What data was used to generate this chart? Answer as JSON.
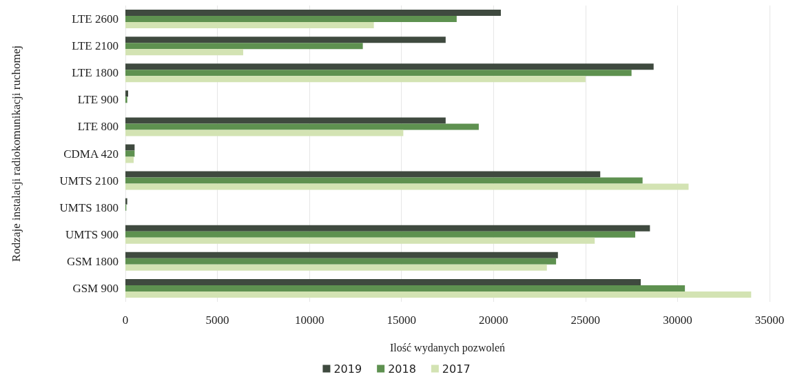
{
  "chart_data": {
    "type": "bar",
    "orientation": "horizontal",
    "xlabel": "Ilość wydanych pozwoleń",
    "ylabel": "Rodzaje instalacji radiokomunikacji ruchomej",
    "categories": [
      "LTE 2600",
      "LTE 2100",
      "LTE 1800",
      "LTE 900",
      "LTE 800",
      "CDMA 420",
      "UMTS 2100",
      "UMTS 1800",
      "UMTS 900",
      "GSM 1800",
      "GSM 900"
    ],
    "series": [
      {
        "name": "2019",
        "color": "#3f4a3f",
        "values": [
          20400,
          17400,
          28700,
          150,
          17400,
          500,
          25800,
          100,
          28500,
          23500,
          28000
        ]
      },
      {
        "name": "2018",
        "color": "#5e9150",
        "values": [
          18000,
          12900,
          27500,
          100,
          19200,
          500,
          28100,
          50,
          27700,
          23400,
          30400
        ]
      },
      {
        "name": "2017",
        "color": "#d3e3b3",
        "values": [
          13500,
          6400,
          25000,
          null,
          15100,
          450,
          30600,
          null,
          25500,
          22900,
          34000
        ]
      }
    ],
    "xlim": [
      0,
      35000
    ],
    "xticks": [
      0,
      5000,
      10000,
      15000,
      20000,
      25000,
      30000,
      35000
    ],
    "grid": "x",
    "legend": "bottom"
  }
}
